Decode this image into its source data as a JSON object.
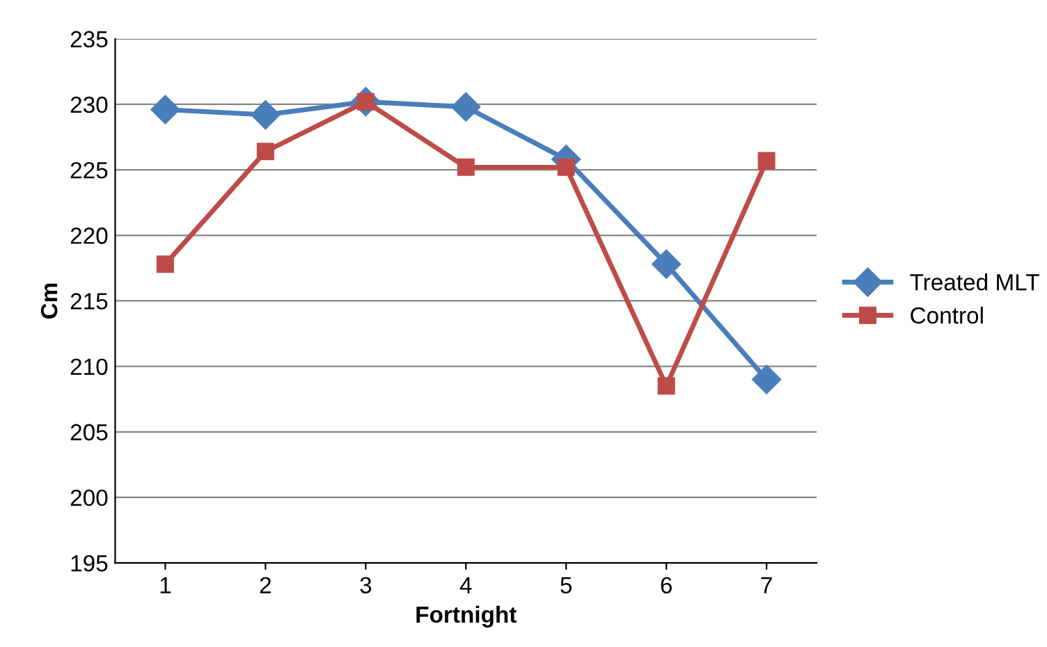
{
  "chart_data": {
    "type": "line",
    "xlabel": "Fortnight",
    "ylabel": "Cm",
    "categories": [
      "1",
      "2",
      "3",
      "4",
      "5",
      "6",
      "7"
    ],
    "series": [
      {
        "name": "Treated MLT",
        "color": "#4a7ebb",
        "marker": "diamond",
        "values": [
          229.6,
          229.2,
          230.2,
          229.8,
          225.8,
          217.8,
          209.0
        ]
      },
      {
        "name": "Control",
        "color": "#be4b48",
        "marker": "square",
        "values": [
          217.8,
          226.4,
          230.2,
          225.2,
          225.2,
          208.5,
          225.7
        ]
      }
    ],
    "ylim": [
      195,
      235
    ],
    "yticks": [
      195,
      200,
      205,
      210,
      215,
      220,
      225,
      230,
      235
    ],
    "grid": "y",
    "legend": "right",
    "line_style": "solid"
  }
}
